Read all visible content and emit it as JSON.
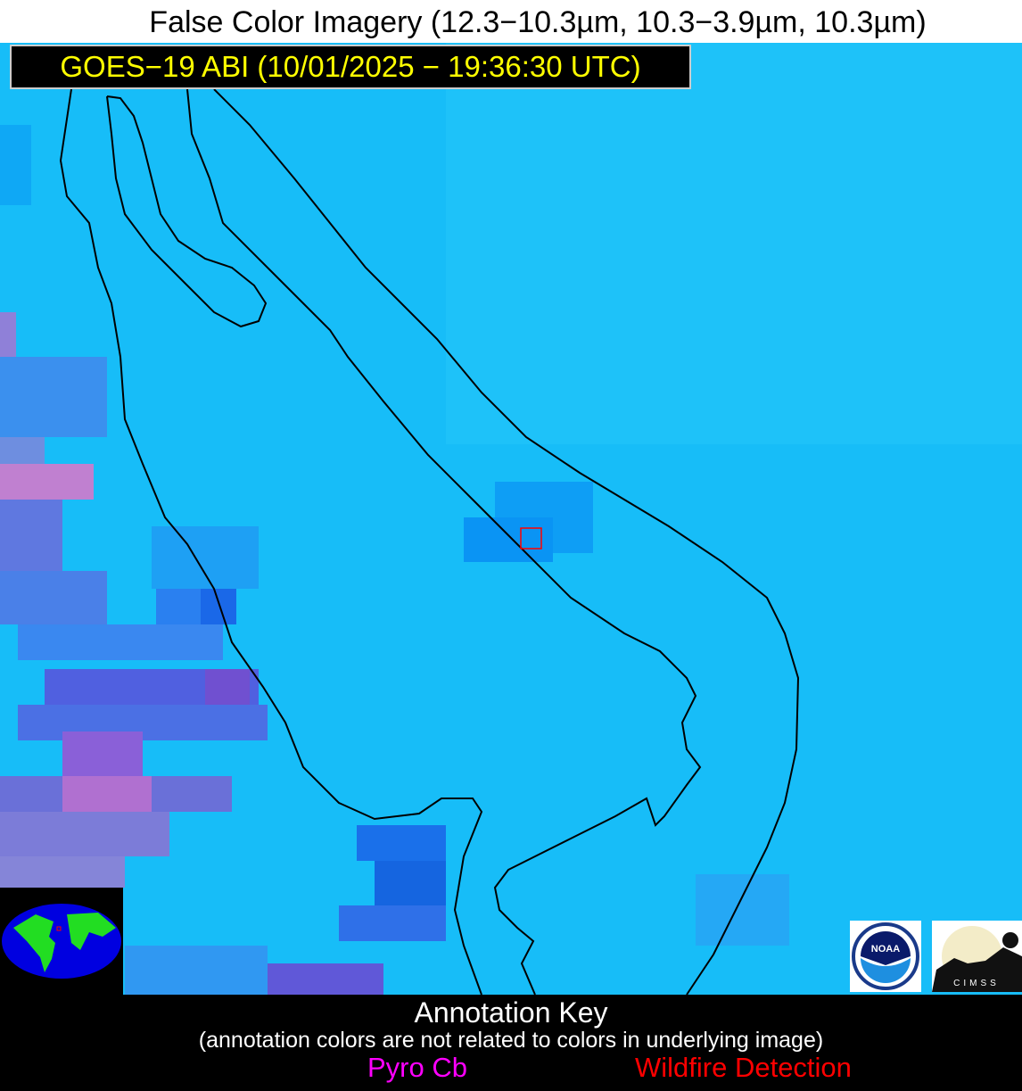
{
  "header": {
    "title": "False Color Imagery (12.3−10.3µm, 10.3−3.9µm, 10.3µm)",
    "subtitle": "GOES−19 ABI (10/01/2025 − 19:36:30 UTC)"
  },
  "map": {
    "base_color": "#17bdf8",
    "coastline_color": "#000000",
    "marker": {
      "type": "wildfire-detection",
      "color": "#ff0000"
    }
  },
  "logos": {
    "noaa": "NOAA",
    "cimss": "CIMSS"
  },
  "annotation_key": {
    "title": "Annotation Key",
    "note": "(annotation colors are not related to colors in underlying image)",
    "items": [
      {
        "label": "Pyro Cb",
        "color": "#ff00ff"
      },
      {
        "label": "Wildfire Detection",
        "color": "#ff0000"
      }
    ]
  }
}
